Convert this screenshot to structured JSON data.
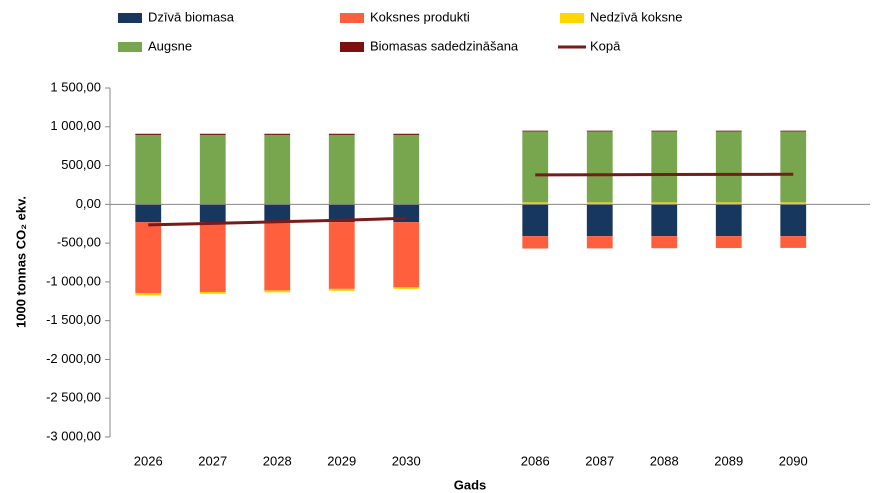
{
  "chart_data": {
    "type": "bar",
    "stacked": true,
    "y_label": "1000 tonnas CO₂ ekv.",
    "x_label": "Gads",
    "categories": [
      "2026",
      "2027",
      "2028",
      "2029",
      "2030",
      null,
      "2086",
      "2087",
      "2088",
      "2089",
      "2090"
    ],
    "series": [
      {
        "name": "Dzīvā biomasa",
        "color": "#17375e",
        "values": [
          -230,
          -230,
          -230,
          -230,
          -230,
          null,
          -410,
          -410,
          -410,
          -410,
          -410
        ]
      },
      {
        "name": "Koksnes produkti",
        "color": "#ff5f3d",
        "values": [
          -915,
          -900,
          -880,
          -860,
          -840,
          null,
          -160,
          -158,
          -156,
          -154,
          -152
        ]
      },
      {
        "name": "Nedzīvā koksne",
        "color": "#ffd700",
        "values": [
          -30,
          -25,
          -25,
          -25,
          -20,
          null,
          25,
          25,
          25,
          25,
          25
        ]
      },
      {
        "name": "Augsne",
        "color": "#77a64f",
        "values": [
          895,
          895,
          895,
          895,
          895,
          null,
          915,
          915,
          915,
          915,
          915
        ]
      },
      {
        "name": "Biomasas sadedzināšana",
        "color": "#7b1010",
        "values": [
          15,
          15,
          15,
          15,
          15,
          null,
          10,
          10,
          10,
          10,
          10
        ]
      },
      {
        "name": "Kopā",
        "type": "line",
        "color": "#7b1a1a",
        "values": [
          -265,
          -245,
          -225,
          -205,
          -180,
          null,
          380,
          382,
          384,
          386,
          388
        ]
      }
    ],
    "ylim": [
      -3000,
      1500
    ],
    "yticks": [
      {
        "value": -3000,
        "label": "-3 000,00"
      },
      {
        "value": -2500,
        "label": "-2 500,00"
      },
      {
        "value": -2000,
        "label": "-2 000,00"
      },
      {
        "value": -1500,
        "label": "-1 500,00"
      },
      {
        "value": -1000,
        "label": "-1 000,00"
      },
      {
        "value": -500,
        "label": "-500,00"
      },
      {
        "value": 0,
        "label": "0,00"
      },
      {
        "value": 500,
        "label": "500,00"
      },
      {
        "value": 1000,
        "label": "1 000,00"
      },
      {
        "value": 1500,
        "label": "1 500,00"
      }
    ],
    "legend": "top"
  }
}
